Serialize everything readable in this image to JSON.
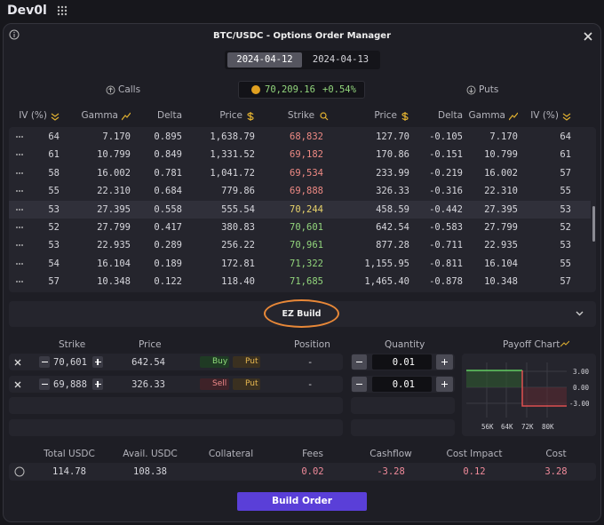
{
  "brand": "Dev0l",
  "title": "BTC/USDC - Options Order Manager",
  "expiries": [
    "2024-04-12",
    "2024-04-13"
  ],
  "calls_label": "Calls",
  "puts_label": "Puts",
  "spot": {
    "price": "70,209.16",
    "change": "+0.54%"
  },
  "chain": {
    "headers": [
      "IV (%)",
      "Gamma",
      "Delta",
      "Price",
      "Strike",
      "Price",
      "Delta",
      "Gamma",
      "IV (%)"
    ],
    "rows": [
      [
        "64",
        "7.170",
        "0.895",
        "1,638.79",
        "68,832",
        "127.70",
        "-0.105",
        "7.170",
        "64"
      ],
      [
        "61",
        "10.799",
        "0.849",
        "1,331.52",
        "69,182",
        "170.86",
        "-0.151",
        "10.799",
        "61"
      ],
      [
        "58",
        "16.002",
        "0.781",
        "1,041.72",
        "69,534",
        "233.99",
        "-0.219",
        "16.002",
        "57"
      ],
      [
        "55",
        "22.310",
        "0.684",
        "779.86",
        "69,888",
        "326.33",
        "-0.316",
        "22.310",
        "55"
      ],
      [
        "53",
        "27.395",
        "0.558",
        "555.54",
        "70,244",
        "458.59",
        "-0.442",
        "27.395",
        "53"
      ],
      [
        "52",
        "27.799",
        "0.417",
        "380.83",
        "70,601",
        "642.54",
        "-0.583",
        "27.799",
        "52"
      ],
      [
        "53",
        "22.935",
        "0.289",
        "256.22",
        "70,961",
        "877.28",
        "-0.711",
        "22.935",
        "53"
      ],
      [
        "54",
        "16.104",
        "0.189",
        "172.81",
        "71,322",
        "1,155.95",
        "-0.811",
        "16.104",
        "55"
      ],
      [
        "57",
        "10.348",
        "0.122",
        "118.40",
        "71,685",
        "1,465.40",
        "-0.878",
        "10.348",
        "57"
      ]
    ]
  },
  "ez_build": "EZ Build",
  "legs": {
    "headers": [
      "Strike",
      "Price",
      "Position",
      "Quantity"
    ],
    "rows": [
      {
        "strike": "70,601",
        "price": "642.54",
        "side": "Buy",
        "kind": "Put",
        "position": "-",
        "quantity": "0.01"
      },
      {
        "strike": "69,888",
        "price": "326.33",
        "side": "Sell",
        "kind": "Put",
        "position": "-",
        "quantity": "0.01"
      }
    ]
  },
  "payoff": {
    "title": "Payoff Chart",
    "yticks": [
      "3.00",
      "0.00",
      "-3.00"
    ],
    "xticks": [
      "56K",
      "64K",
      "72K",
      "80K"
    ]
  },
  "summary": [
    {
      "label": "Total USDC",
      "value": "114.78"
    },
    {
      "label": "Avail. USDC",
      "value": "108.38"
    },
    {
      "label": "Collateral"
    },
    {
      "label": "Fees",
      "value": "0.02"
    },
    {
      "label": "Cashflow",
      "value": "-3.28"
    },
    {
      "label": "Cost Impact",
      "value": "0.12"
    },
    {
      "label": "Cost",
      "value": "3.28"
    }
  ],
  "build_order": "Build Order"
}
